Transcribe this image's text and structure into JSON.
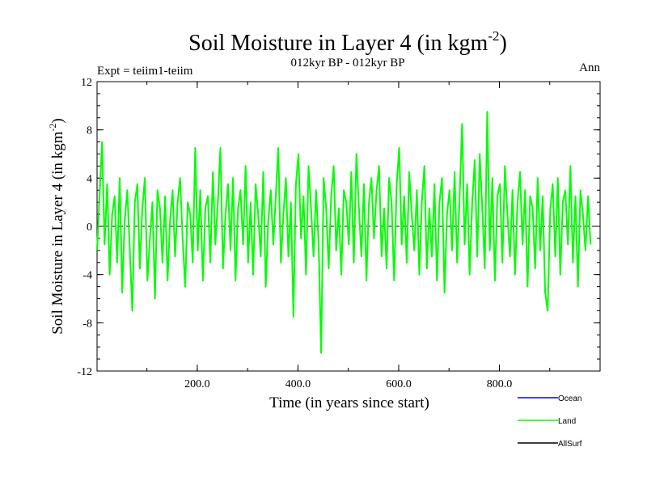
{
  "chart_data": {
    "type": "line",
    "title_main": "Soil Moisture in Layer 4 (in kgm",
    "title_sup": "-2",
    "title_close": ")",
    "subtitle": "012kyr BP - 012kyr BP",
    "left_label": "Expt = teiim1-teiim",
    "right_label": "Ann",
    "xlabel": "Time (in years since start)",
    "ylabel_main": "Soil Moisture in Layer 4 (in kgm",
    "ylabel_sup": "-2",
    "ylabel_close": ")",
    "xlim": [
      1,
      1000
    ],
    "ylim": [
      -12,
      12
    ],
    "xticks": [
      200,
      400,
      600,
      800
    ],
    "xtick_labels": [
      "200.0",
      "400.0",
      "600.0",
      "800.0"
    ],
    "yticks": [
      -12,
      -8,
      -4,
      0,
      4,
      8,
      12
    ],
    "ytick_labels": [
      "-12",
      "-8",
      "-4",
      "0",
      "4",
      "8",
      "12"
    ],
    "zero_line": "dashed",
    "grid": false,
    "legend_position": "below-right",
    "legend": [
      {
        "name": "Ocean",
        "color": "#0000ff"
      },
      {
        "name": "Land",
        "color": "#00ff00"
      },
      {
        "name": "AllSurf",
        "color": "#000000"
      }
    ],
    "series": [
      {
        "name": "Land",
        "color": "#00ff00",
        "x_start": 1,
        "x_step": 5,
        "values": [
          -2.0,
          2.5,
          7.0,
          -1.5,
          3.5,
          -4.0,
          1.0,
          2.5,
          -3.0,
          4.0,
          -5.5,
          0.5,
          3.0,
          -2.0,
          -7.0,
          2.0,
          3.5,
          -3.5,
          1.5,
          4.0,
          -4.5,
          -1.0,
          2.0,
          -6.0,
          3.0,
          1.5,
          -3.0,
          2.5,
          -4.5,
          0.5,
          3.0,
          -2.5,
          2.0,
          4.0,
          -1.0,
          -5.0,
          2.0,
          1.0,
          -3.0,
          6.5,
          -2.0,
          3.0,
          -4.5,
          1.5,
          2.5,
          -3.0,
          4.5,
          -1.5,
          2.0,
          6.5,
          -3.5,
          1.0,
          3.5,
          -2.0,
          4.0,
          -4.5,
          1.5,
          3.0,
          -1.5,
          5.0,
          -3.0,
          2.0,
          -4.0,
          3.5,
          1.0,
          -2.5,
          4.5,
          -5.0,
          0.5,
          3.0,
          -1.5,
          2.5,
          6.5,
          -3.0,
          1.0,
          4.0,
          -2.5,
          2.0,
          -7.5,
          3.5,
          6.0,
          -1.0,
          2.5,
          -4.0,
          5.0,
          1.5,
          -2.5,
          3.0,
          -1.5,
          -10.5,
          4.0,
          1.5,
          -3.5,
          2.5,
          5.0,
          -2.0,
          1.5,
          -4.0,
          3.0,
          2.0,
          -1.5,
          4.5,
          -3.0,
          6.0,
          1.5,
          -2.5,
          3.5,
          -4.5,
          2.0,
          4.0,
          -1.0,
          3.0,
          5.0,
          -2.5,
          1.5,
          -3.5,
          4.0,
          2.0,
          -4.5,
          3.5,
          6.5,
          -1.5,
          2.5,
          -3.0,
          4.5,
          1.0,
          -2.0,
          3.0,
          -4.0,
          2.0,
          5.0,
          -3.5,
          1.5,
          -2.5,
          3.5,
          -4.5,
          2.0,
          4.0,
          -5.5,
          1.0,
          3.0,
          -2.0,
          4.5,
          -3.0,
          2.5,
          8.5,
          -1.5,
          3.5,
          -4.0,
          2.0,
          5.5,
          -2.5,
          6.0,
          1.5,
          -3.5,
          9.5,
          -2.0,
          4.0,
          -4.5,
          2.5,
          3.5,
          -3.0,
          5.0,
          1.0,
          -2.5,
          3.0,
          -4.0,
          2.0,
          4.5,
          -1.5,
          3.0,
          -5.0,
          2.5,
          1.5,
          -3.5,
          4.0,
          -2.0,
          2.5,
          -5.5,
          -7.0,
          1.5,
          3.5,
          -2.5,
          4.0,
          -4.0,
          2.0,
          3.0,
          -1.5,
          5.0,
          -3.0,
          2.5,
          -5.0,
          3.0,
          1.0,
          -2.0,
          2.5,
          -1.5
        ]
      }
    ]
  }
}
